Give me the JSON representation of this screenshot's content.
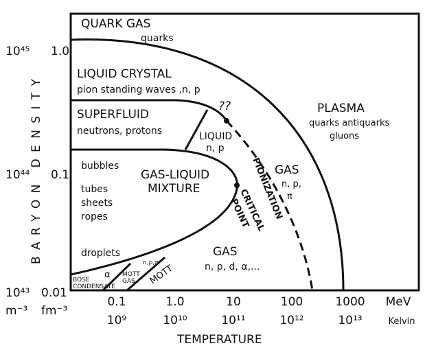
{
  "axes": {
    "y_title": "BARYON DENSITY",
    "x_title": "TEMPERATURE",
    "y_ticks_fm": [
      "1.0",
      "0.1",
      "0.01"
    ],
    "y_ticks_m": [
      "10⁴⁵",
      "10⁴⁴",
      "10⁴³"
    ],
    "y_unit_m": "m⁻³",
    "y_unit_fm": "fm⁻³",
    "x_ticks_mev": [
      "0.1",
      "1.0",
      "10",
      "100",
      "1000"
    ],
    "x_unit_mev": "MeV",
    "x_ticks_kelvin": [
      "10⁹",
      "10¹⁰",
      "10¹¹",
      "10¹²",
      "10¹³"
    ],
    "x_unit_kelvin": "Kelvin"
  },
  "regions": {
    "quark_gas": {
      "title": "QUARK GAS",
      "detail": "quarks"
    },
    "liquid_crystal": {
      "title": "LIQUID CRYSTAL",
      "detail": "pion standing waves ,n, p"
    },
    "superfluid": {
      "title": "SUPERFLUID",
      "detail": "neutrons, protons"
    },
    "unknown": "??",
    "liquid": {
      "title": "LIQUID",
      "detail": "n, p"
    },
    "plasma": {
      "title": "PLASMA",
      "detail": [
        "quarks antiquarks",
        "gluons"
      ]
    },
    "mixture": {
      "title": [
        "GAS-LIQUID",
        "MIXTURE"
      ],
      "details": [
        "bubbles",
        "tubes",
        "sheets",
        "ropes",
        "droplets"
      ]
    },
    "hot_gas": {
      "title": "GAS",
      "detail": [
        "n, p,",
        "π"
      ]
    },
    "pionization": "PIONIZATION",
    "critical_point": [
      "CRITICAL",
      "POINT"
    ],
    "gas": {
      "title": "GAS",
      "detail": "n, p, d, α,..."
    },
    "bose": {
      "title": [
        "BOSE",
        "CONDENSATE"
      ],
      "detail": "α"
    },
    "mott_gas": {
      "title": [
        "MOTT",
        "GAS"
      ],
      "detail": "n,p,α"
    },
    "mott": "MOTT"
  }
}
